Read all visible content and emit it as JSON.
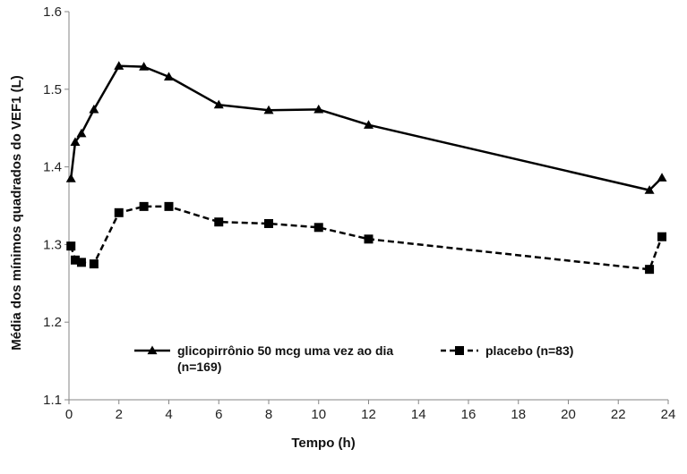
{
  "chart_data": {
    "type": "line",
    "xlabel": "Tempo (h)",
    "ylabel": "Média dos mínimos quadrados do VEF1 (L)",
    "xlim": [
      0,
      24
    ],
    "ylim": [
      1.1,
      1.6
    ],
    "xticks": [
      "0",
      "2",
      "4",
      "6",
      "8",
      "10",
      "12",
      "14",
      "16",
      "18",
      "20",
      "22",
      "24"
    ],
    "yticks": [
      "1.1",
      "1.2",
      "1.3",
      "1.4",
      "1.5",
      "1.6"
    ],
    "grid": false,
    "legend_position": "lower-center",
    "series": [
      {
        "name": "glicopirrônio 50 mcg uma vez ao dia (n=169)",
        "legend_lines": [
          "glicopirrônio 50 mcg uma vez ao dia",
          "(n=169)"
        ],
        "marker": "triangle",
        "line_style": "solid",
        "color": "#000000",
        "x": [
          0.08,
          0.25,
          0.5,
          1,
          2,
          3,
          4,
          6,
          8,
          10,
          12,
          23.25,
          23.75
        ],
        "values": [
          1.385,
          1.432,
          1.443,
          1.474,
          1.53,
          1.529,
          1.516,
          1.48,
          1.473,
          1.474,
          1.454,
          1.37,
          1.386
        ]
      },
      {
        "name": "placebo (n=83)",
        "legend_lines": [
          "placebo (n=83)"
        ],
        "marker": "square",
        "line_style": "dashed",
        "color": "#000000",
        "x": [
          0.08,
          0.25,
          0.5,
          1,
          2,
          3,
          4,
          6,
          8,
          10,
          12,
          23.25,
          23.75
        ],
        "values": [
          1.298,
          1.28,
          1.277,
          1.275,
          1.341,
          1.349,
          1.349,
          1.329,
          1.327,
          1.322,
          1.307,
          1.268,
          1.31
        ]
      }
    ]
  }
}
